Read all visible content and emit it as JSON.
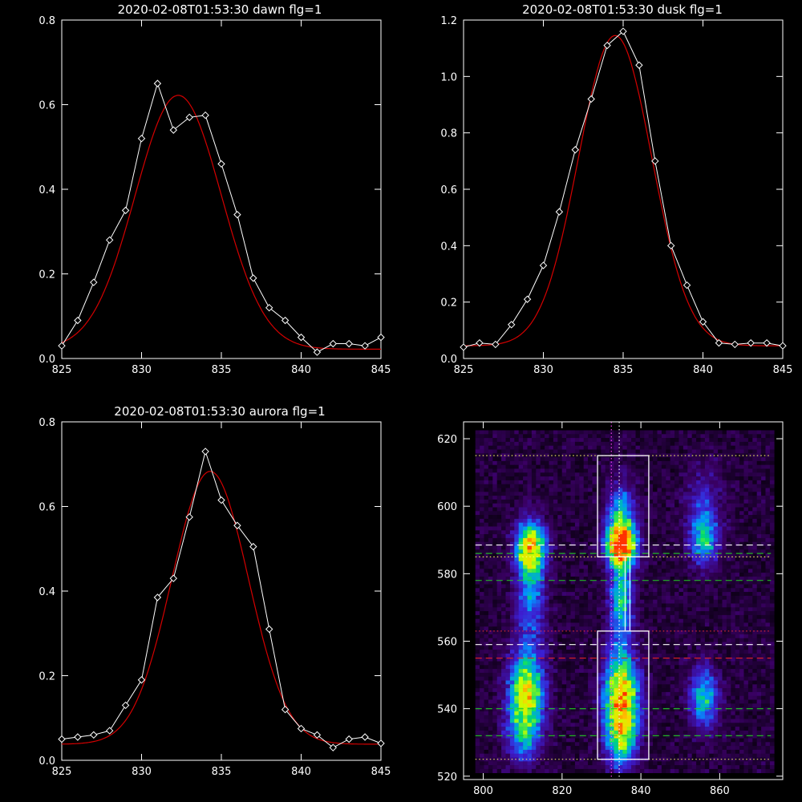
{
  "figure": {
    "background": "#000000",
    "axis_color": "#ffffff",
    "obs_color": "#ffffff",
    "fit_color": "#d40000"
  },
  "chart_data": [
    {
      "type": "line",
      "title": "2020-02-08T01:53:30 dawn flg=1",
      "xlim": [
        825,
        845
      ],
      "ylim": [
        0,
        0.8
      ],
      "x_ticks": [
        "825",
        "830",
        "835",
        "840",
        "845"
      ],
      "y_ticks": [
        "0.0",
        "0.2",
        "0.4",
        "0.6",
        "0.8"
      ],
      "series": [
        {
          "kind": "observed",
          "marker": "diamond",
          "x": [
            825,
            826,
            827,
            828,
            829,
            830,
            831,
            832,
            833,
            834,
            835,
            836,
            837,
            838,
            839,
            840,
            841,
            842,
            843,
            844,
            845
          ],
          "y": [
            0.03,
            0.09,
            0.18,
            0.28,
            0.35,
            0.52,
            0.65,
            0.54,
            0.57,
            0.575,
            0.46,
            0.34,
            0.19,
            0.12,
            0.09,
            0.05,
            0.015,
            0.035,
            0.035,
            0.03,
            0.05
          ]
        },
        {
          "kind": "fit",
          "model": "gaussian",
          "center": 832.3,
          "sigma": 2.7,
          "amplitude": 0.6,
          "offset": 0.022
        }
      ]
    },
    {
      "type": "line",
      "title": "2020-02-08T01:53:30 dusk flg=1",
      "xlim": [
        825,
        845
      ],
      "ylim": [
        0,
        1.2
      ],
      "x_ticks": [
        "825",
        "830",
        "835",
        "840",
        "845"
      ],
      "y_ticks": [
        "0.0",
        "0.2",
        "0.4",
        "0.6",
        "0.8",
        "1.0",
        "1.2"
      ],
      "series": [
        {
          "kind": "observed",
          "marker": "diamond",
          "x": [
            825,
            826,
            827,
            828,
            829,
            830,
            831,
            832,
            833,
            834,
            835,
            836,
            837,
            838,
            839,
            840,
            841,
            842,
            843,
            844,
            845
          ],
          "y": [
            0.04,
            0.055,
            0.05,
            0.12,
            0.21,
            0.33,
            0.52,
            0.74,
            0.92,
            1.11,
            1.16,
            1.04,
            0.7,
            0.4,
            0.26,
            0.13,
            0.055,
            0.05,
            0.055,
            0.055,
            0.045
          ]
        },
        {
          "kind": "fit",
          "model": "gaussian",
          "center": 834.5,
          "sigma": 2.3,
          "amplitude": 1.1,
          "offset": 0.045
        }
      ]
    },
    {
      "type": "line",
      "title": "2020-02-08T01:53:30 aurora flg=1",
      "xlim": [
        825,
        845
      ],
      "ylim": [
        0,
        0.8
      ],
      "x_ticks": [
        "825",
        "830",
        "835",
        "840",
        "845"
      ],
      "y_ticks": [
        "0.0",
        "0.2",
        "0.4",
        "0.6",
        "0.8"
      ],
      "series": [
        {
          "kind": "observed",
          "marker": "diamond",
          "x": [
            825,
            826,
            827,
            828,
            829,
            830,
            831,
            832,
            833,
            834,
            835,
            836,
            837,
            838,
            839,
            840,
            841,
            842,
            843,
            844,
            845
          ],
          "y": [
            0.05,
            0.055,
            0.06,
            0.07,
            0.13,
            0.19,
            0.385,
            0.43,
            0.575,
            0.73,
            0.615,
            0.555,
            0.505,
            0.31,
            0.12,
            0.075,
            0.06,
            0.03,
            0.05,
            0.055,
            0.04
          ]
        },
        {
          "kind": "fit",
          "model": "gaussian",
          "center": 834.3,
          "sigma": 2.4,
          "amplitude": 0.645,
          "offset": 0.038
        }
      ]
    },
    {
      "type": "heatmap",
      "title": "",
      "xlim": [
        795,
        876
      ],
      "ylim": [
        519,
        625
      ],
      "x_ticks": [
        "800",
        "820",
        "840",
        "860"
      ],
      "y_ticks": [
        "520",
        "540",
        "560",
        "580",
        "600",
        "620"
      ],
      "colormap": [
        "#000000",
        "#3a0064",
        "#3c1ed2",
        "#0096ff",
        "#00dc6e",
        "#c8ff00",
        "#ffd200",
        "#ff3200"
      ],
      "data_extent": {
        "x": [
          798,
          873
        ],
        "y": [
          521.5,
          622.5
        ]
      },
      "emission_blobs": [
        {
          "x": 812,
          "y": 588,
          "sx": 2.5,
          "sy": 5,
          "amp": 0.75
        },
        {
          "x": 812,
          "y": 574,
          "sx": 2.5,
          "sy": 10,
          "amp": 0.35
        },
        {
          "x": 811,
          "y": 545,
          "sx": 3,
          "sy": 8,
          "amp": 0.7
        },
        {
          "x": 810,
          "y": 532,
          "sx": 3,
          "sy": 6,
          "amp": 0.3
        },
        {
          "x": 835,
          "y": 588,
          "sx": 2.5,
          "sy": 4,
          "amp": 1.0
        },
        {
          "x": 835,
          "y": 597,
          "sx": 2.5,
          "sy": 6,
          "amp": 0.45
        },
        {
          "x": 835,
          "y": 572,
          "sx": 2,
          "sy": 8,
          "amp": 0.5
        },
        {
          "x": 835,
          "y": 543,
          "sx": 3,
          "sy": 9,
          "amp": 0.85
        },
        {
          "x": 835,
          "y": 530,
          "sx": 2.5,
          "sy": 6,
          "amp": 0.35
        },
        {
          "x": 856,
          "y": 590,
          "sx": 2.5,
          "sy": 5,
          "amp": 0.4
        },
        {
          "x": 856,
          "y": 543,
          "sx": 2.5,
          "sy": 6,
          "amp": 0.45
        },
        {
          "x": 856,
          "y": 600,
          "sx": 3,
          "sy": 8,
          "amp": 0.18
        }
      ],
      "boxes": [
        {
          "x0": 829,
          "x1": 842,
          "y0": 585,
          "y1": 615
        },
        {
          "x0": 829,
          "x1": 842,
          "y0": 525,
          "y1": 563
        }
      ],
      "vertical_lines": [
        {
          "x": 832.5,
          "color": "#ff44ff",
          "style": "dotted"
        },
        {
          "x": 834.5,
          "color": "#ffffff",
          "style": "dotted"
        },
        {
          "x": 836,
          "color": "#ffffff",
          "style": "solid",
          "y0": 563,
          "y1": 585
        },
        {
          "x": 837.2,
          "color": "#ffffff",
          "style": "solid",
          "y0": 563,
          "y1": 585
        }
      ],
      "horizontal_lines": [
        {
          "y": 615,
          "color": "#ffff66",
          "style": "dotted"
        },
        {
          "y": 588.5,
          "color": "#ffffff",
          "style": "dashed"
        },
        {
          "y": 586,
          "color": "#22cc22",
          "style": "dashed"
        },
        {
          "y": 585,
          "color": "#ffff66",
          "style": "dotted"
        },
        {
          "y": 578,
          "color": "#22cc22",
          "style": "dashed"
        },
        {
          "y": 563,
          "color": "#ff3333",
          "style": "dotted"
        },
        {
          "y": 559,
          "color": "#ffffff",
          "style": "dashed"
        },
        {
          "y": 555,
          "color": "#dd2222",
          "style": "dashed"
        },
        {
          "y": 540,
          "color": "#22cc22",
          "style": "dashed"
        },
        {
          "y": 532,
          "color": "#22cc22",
          "style": "dashed"
        },
        {
          "y": 525,
          "color": "#ffff66",
          "style": "dotted"
        }
      ]
    }
  ]
}
